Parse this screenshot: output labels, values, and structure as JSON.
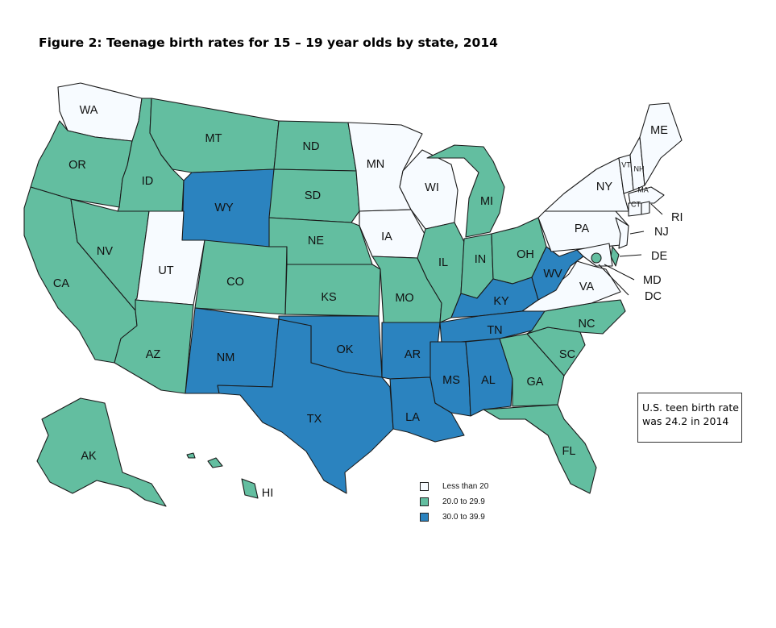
{
  "title": "Figure 2: Teenage birth rates for 15 – 19 year olds by state, 2014",
  "legend": [
    {
      "label": "Less than 20",
      "color": "#f7fbff"
    },
    {
      "label": "20.0 to 29.9",
      "color": "#63bea0"
    },
    {
      "label": "30.0 to 39.9",
      "color": "#2b83bf"
    }
  ],
  "note": {
    "line1": "U.S. teen birth rate",
    "line2": "was 24.2 in 2014"
  },
  "states": [
    {
      "abbr": "WA",
      "category": 0
    },
    {
      "abbr": "OR",
      "category": 1
    },
    {
      "abbr": "CA",
      "category": 1
    },
    {
      "abbr": "ID",
      "category": 1
    },
    {
      "abbr": "NV",
      "category": 1
    },
    {
      "abbr": "MT",
      "category": 1
    },
    {
      "abbr": "WY",
      "category": 2
    },
    {
      "abbr": "UT",
      "category": 0
    },
    {
      "abbr": "AZ",
      "category": 1
    },
    {
      "abbr": "CO",
      "category": 1
    },
    {
      "abbr": "NM",
      "category": 2
    },
    {
      "abbr": "ND",
      "category": 1
    },
    {
      "abbr": "SD",
      "category": 1
    },
    {
      "abbr": "NE",
      "category": 1
    },
    {
      "abbr": "KS",
      "category": 1
    },
    {
      "abbr": "OK",
      "category": 2
    },
    {
      "abbr": "TX",
      "category": 2
    },
    {
      "abbr": "MN",
      "category": 0
    },
    {
      "abbr": "IA",
      "category": 0
    },
    {
      "abbr": "MO",
      "category": 1
    },
    {
      "abbr": "AR",
      "category": 2
    },
    {
      "abbr": "LA",
      "category": 2
    },
    {
      "abbr": "WI",
      "category": 0
    },
    {
      "abbr": "IL",
      "category": 1
    },
    {
      "abbr": "MI",
      "category": 1
    },
    {
      "abbr": "IN",
      "category": 1
    },
    {
      "abbr": "OH",
      "category": 1
    },
    {
      "abbr": "KY",
      "category": 2
    },
    {
      "abbr": "TN",
      "category": 2
    },
    {
      "abbr": "MS",
      "category": 2
    },
    {
      "abbr": "AL",
      "category": 2
    },
    {
      "abbr": "GA",
      "category": 1
    },
    {
      "abbr": "FL",
      "category": 1
    },
    {
      "abbr": "SC",
      "category": 1
    },
    {
      "abbr": "NC",
      "category": 1
    },
    {
      "abbr": "VA",
      "category": 0
    },
    {
      "abbr": "WV",
      "category": 2
    },
    {
      "abbr": "PA",
      "category": 0
    },
    {
      "abbr": "NY",
      "category": 0
    },
    {
      "abbr": "VT",
      "category": 0
    },
    {
      "abbr": "NH",
      "category": 0
    },
    {
      "abbr": "ME",
      "category": 0
    },
    {
      "abbr": "MA",
      "category": 0
    },
    {
      "abbr": "CT",
      "category": 0
    },
    {
      "abbr": "RI",
      "category": 0
    },
    {
      "abbr": "NJ",
      "category": 0
    },
    {
      "abbr": "DE",
      "category": 1
    },
    {
      "abbr": "MD",
      "category": 0
    },
    {
      "abbr": "DC",
      "category": 1
    },
    {
      "abbr": "AK",
      "category": 1
    },
    {
      "abbr": "HI",
      "category": 1
    }
  ]
}
